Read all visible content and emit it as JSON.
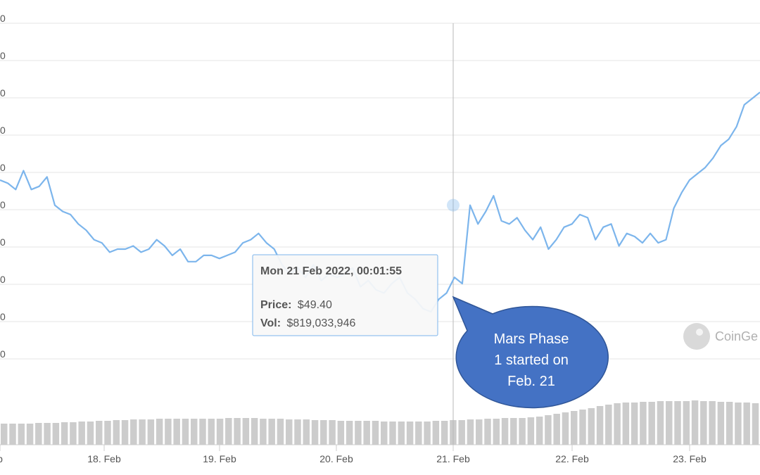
{
  "chart_data": {
    "type": "line",
    "title": "",
    "xlabel": "",
    "ylabel": "",
    "x_ticks": [
      "18. Feb",
      "19. Feb",
      "20. Feb",
      "21. Feb",
      "22. Feb",
      "23. Feb"
    ],
    "x_tick_partial_left": "b",
    "y_tick_fragments": [
      "0",
      "0",
      "0",
      "0",
      "0",
      "0",
      "0",
      "0",
      "0",
      "0"
    ],
    "grid": true,
    "series": [
      {
        "values": [
          50.2,
          50.1,
          49.9,
          50.5,
          49.9,
          50.0,
          50.3,
          49.4,
          49.2,
          49.1,
          48.8,
          48.6,
          48.3,
          48.2,
          47.9,
          48.0,
          48.0,
          48.1,
          47.9,
          48.0,
          48.3,
          48.1,
          47.8,
          48.0,
          47.6,
          47.6,
          47.8,
          47.8,
          47.7,
          47.8,
          47.9,
          48.2,
          48.3,
          48.5,
          48.2,
          48.0,
          47.5,
          47.2,
          47.4,
          47.1,
          47.5,
          47.0,
          47.2,
          47.1,
          47.2,
          47.4,
          46.8,
          47.0,
          46.7,
          46.6,
          46.9,
          47.1,
          46.6,
          46.4,
          46.1,
          46.0,
          46.4,
          46.6,
          47.1,
          46.9,
          49.4,
          48.8,
          49.2,
          49.7,
          48.9,
          48.8,
          49.0,
          48.6,
          48.3,
          48.7,
          48.0,
          48.3,
          48.7,
          48.8,
          49.1,
          49.0,
          48.3,
          48.7,
          48.8,
          48.1,
          48.5,
          48.4,
          48.2,
          48.5,
          48.2,
          48.3,
          49.3,
          49.8,
          50.2,
          50.4,
          50.6,
          50.9,
          51.3,
          51.5,
          51.9,
          52.6,
          52.8,
          53.0
        ],
        "color": "#7cb5ec"
      }
    ],
    "volume_bars": [
      30,
      30,
      30,
      30,
      31,
      31,
      31,
      32,
      32,
      33,
      33,
      34,
      34,
      35,
      35,
      36,
      36,
      36,
      37,
      37,
      37,
      37,
      37,
      37,
      37,
      37,
      38,
      38,
      38,
      38,
      37,
      37,
      37,
      36,
      36,
      36,
      35,
      35,
      35,
      34,
      34,
      34,
      34,
      34,
      33,
      33,
      33,
      33,
      33,
      33,
      34,
      34,
      35,
      35,
      36,
      36,
      37,
      37,
      38,
      38,
      38,
      39,
      40,
      42,
      44,
      46,
      48,
      50,
      52,
      55,
      57,
      59,
      60,
      60,
      61,
      61,
      62,
      62,
      62,
      62,
      63,
      62,
      62,
      61,
      61,
      60,
      60,
      59
    ],
    "volume_color": "#cccccc",
    "tooltip": {
      "title": "Mon 21 Feb 2022, 00:01:55",
      "price_label": "Price:",
      "price_value": "$49.40",
      "vol_label": "Vol:",
      "vol_value": "$819,033,946"
    },
    "callout": {
      "lines": [
        "Mars Phase",
        "1 started on",
        "Feb. 21"
      ],
      "fill": "#4472c4"
    },
    "watermark": "CoinGe"
  }
}
